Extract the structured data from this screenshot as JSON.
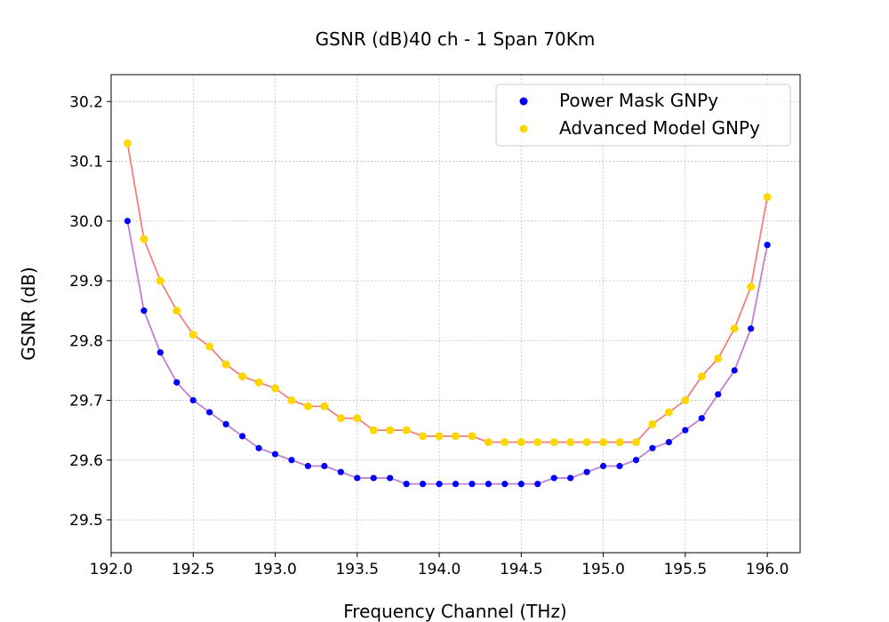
{
  "chart_data": {
    "type": "scatter",
    "title": "GSNR (dB)40 ch - 1 Span 70Km",
    "xlabel": "Frequency Channel (THz)",
    "ylabel": "GSNR (dB)",
    "xlim": [
      192.0,
      196.2
    ],
    "ylim": [
      29.445,
      30.245
    ],
    "x_ticks": [
      "192.0",
      "192.5",
      "193.0",
      "193.5",
      "194.0",
      "194.5",
      "195.0",
      "195.5",
      "196.0"
    ],
    "y_ticks": [
      "29.5",
      "29.6",
      "29.7",
      "29.8",
      "29.9",
      "30.0",
      "30.1",
      "30.2"
    ],
    "grid": true,
    "legend_position": "top-right",
    "x": [
      192.1,
      192.2,
      192.3,
      192.4,
      192.5,
      192.6,
      192.7,
      192.8,
      192.9,
      193.0,
      193.1,
      193.2,
      193.3,
      193.4,
      193.5,
      193.6,
      193.7,
      193.8,
      193.9,
      194.0,
      194.1,
      194.2,
      194.3,
      194.4,
      194.5,
      194.6,
      194.7,
      194.8,
      194.9,
      195.0,
      195.1,
      195.2,
      195.3,
      195.4,
      195.5,
      195.6,
      195.7,
      195.8,
      195.9,
      196.0
    ],
    "series": [
      {
        "name": "Power Mask GNPy",
        "marker_color": "#0000ff",
        "line_color": "#bf80d0",
        "values": [
          30.0,
          29.85,
          29.78,
          29.73,
          29.7,
          29.68,
          29.66,
          29.64,
          29.62,
          29.61,
          29.6,
          29.59,
          29.59,
          29.58,
          29.57,
          29.57,
          29.57,
          29.56,
          29.56,
          29.56,
          29.56,
          29.56,
          29.56,
          29.56,
          29.56,
          29.56,
          29.57,
          29.57,
          29.58,
          29.59,
          29.59,
          29.6,
          29.62,
          29.63,
          29.65,
          29.67,
          29.71,
          29.75,
          29.82,
          29.96
        ]
      },
      {
        "name": "Advanced Model GNPy",
        "marker_color": "#ffd700",
        "line_color": "#f08080",
        "values": [
          30.13,
          29.97,
          29.9,
          29.85,
          29.81,
          29.79,
          29.76,
          29.74,
          29.73,
          29.72,
          29.7,
          29.69,
          29.69,
          29.67,
          29.67,
          29.65,
          29.65,
          29.65,
          29.64,
          29.64,
          29.64,
          29.64,
          29.63,
          29.63,
          29.63,
          29.63,
          29.63,
          29.63,
          29.63,
          29.63,
          29.63,
          29.63,
          29.66,
          29.68,
          29.7,
          29.74,
          29.77,
          29.82,
          29.89,
          30.04
        ]
      }
    ]
  }
}
